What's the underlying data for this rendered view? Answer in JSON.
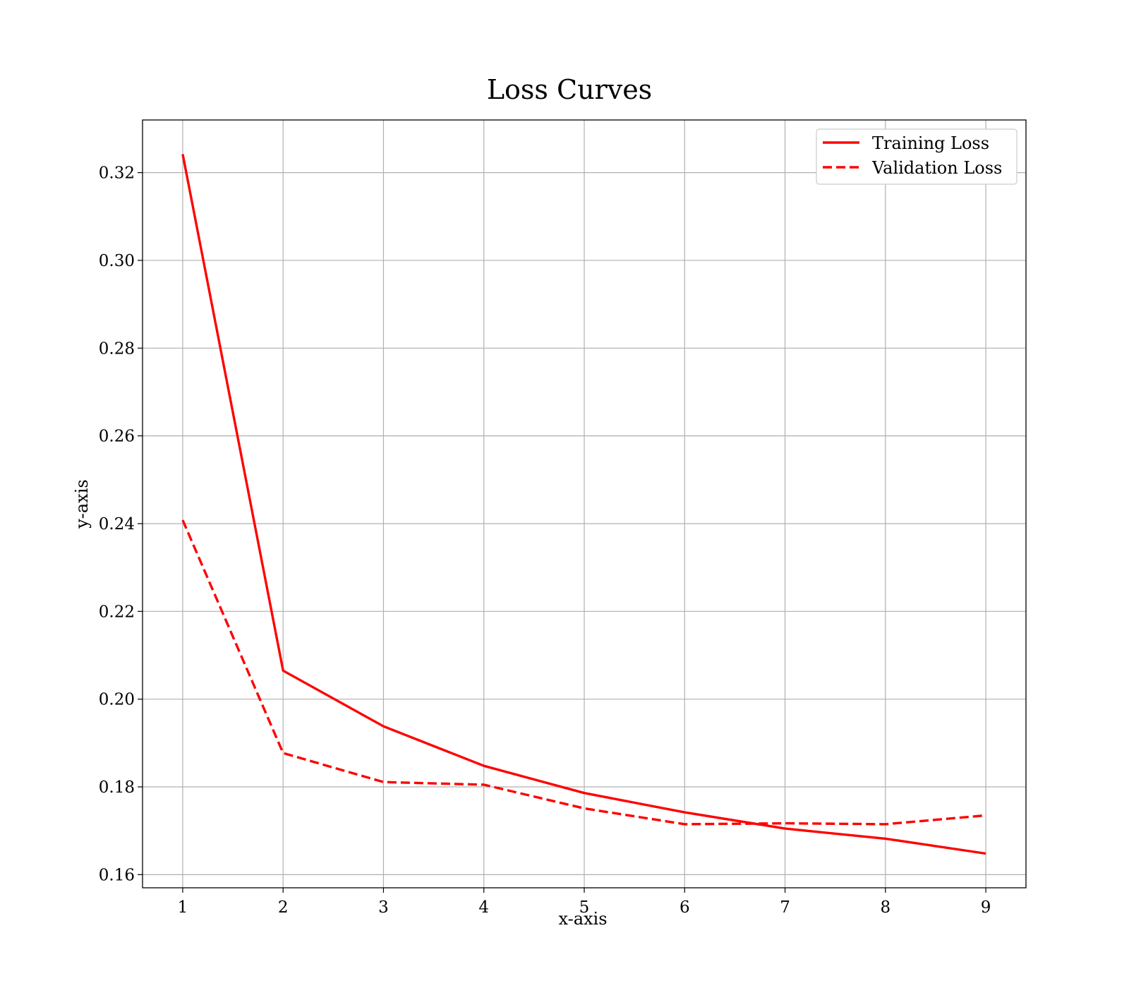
{
  "chart_data": {
    "type": "line",
    "title": "Loss Curves",
    "xlabel": "x-axis",
    "ylabel": "y-axis",
    "x": [
      1,
      2,
      3,
      4,
      5,
      6,
      7,
      8,
      9
    ],
    "series": [
      {
        "name": "Training Loss",
        "values": [
          0.3242,
          0.2065,
          0.1938,
          0.1848,
          0.1786,
          0.1742,
          0.1705,
          0.1682,
          0.1648
        ],
        "color": "#ff0000",
        "linestyle": "solid"
      },
      {
        "name": "Validation Loss",
        "values": [
          0.2408,
          0.1877,
          0.1811,
          0.1805,
          0.1751,
          0.1715,
          0.1717,
          0.1715,
          0.1735
        ],
        "color": "#ff0000",
        "linestyle": "dashed"
      }
    ],
    "xlim": [
      0.6,
      9.4
    ],
    "ylim": [
      0.157,
      0.332
    ],
    "xticks": [
      1,
      2,
      3,
      4,
      5,
      6,
      7,
      8,
      9
    ],
    "yticks": [
      0.16,
      0.18,
      0.2,
      0.22,
      0.24,
      0.26,
      0.28,
      0.3,
      0.32
    ],
    "ytick_labels": [
      "0.16",
      "0.18",
      "0.20",
      "0.22",
      "0.24",
      "0.26",
      "0.28",
      "0.30",
      "0.32"
    ],
    "grid": true,
    "legend_position": "top-right"
  }
}
